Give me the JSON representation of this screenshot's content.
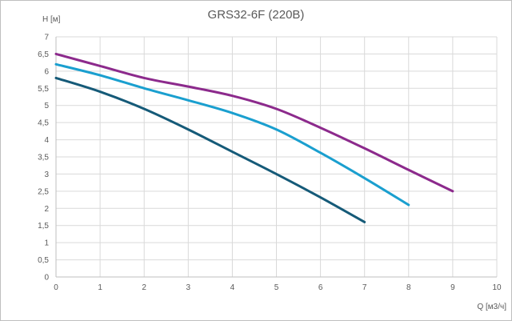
{
  "chart_data": {
    "type": "line",
    "title": "GRS32-6F (220В)",
    "xlabel": "Q [м3/ч]",
    "ylabel": "H [м]",
    "xlim": [
      0,
      10
    ],
    "ylim": [
      0,
      7
    ],
    "x_ticks": [
      "0",
      "1",
      "2",
      "3",
      "4",
      "5",
      "6",
      "7",
      "8",
      "9",
      "10"
    ],
    "y_ticks": [
      "0",
      "0,5",
      "1",
      "1,5",
      "2",
      "2,5",
      "3",
      "3,5",
      "4",
      "4,5",
      "5",
      "5,5",
      "6",
      "6,5",
      "7"
    ],
    "grid": true,
    "series": [
      {
        "color": "#8c2a8c",
        "x": [
          0,
          1,
          2,
          3,
          4,
          5,
          6,
          7,
          8,
          9
        ],
        "y": [
          6.5,
          6.15,
          5.8,
          5.55,
          5.28,
          4.9,
          4.35,
          3.75,
          3.12,
          2.5
        ]
      },
      {
        "color": "#1a9fcf",
        "x": [
          0,
          1,
          2,
          3,
          4,
          5,
          6,
          7,
          8
        ],
        "y": [
          6.2,
          5.88,
          5.5,
          5.15,
          4.78,
          4.3,
          3.62,
          2.88,
          2.1
        ]
      },
      {
        "color": "#155a78",
        "x": [
          0,
          1,
          2,
          3,
          4,
          5,
          6,
          7
        ],
        "y": [
          5.8,
          5.4,
          4.9,
          4.3,
          3.65,
          3.0,
          2.32,
          1.6
        ]
      }
    ]
  }
}
